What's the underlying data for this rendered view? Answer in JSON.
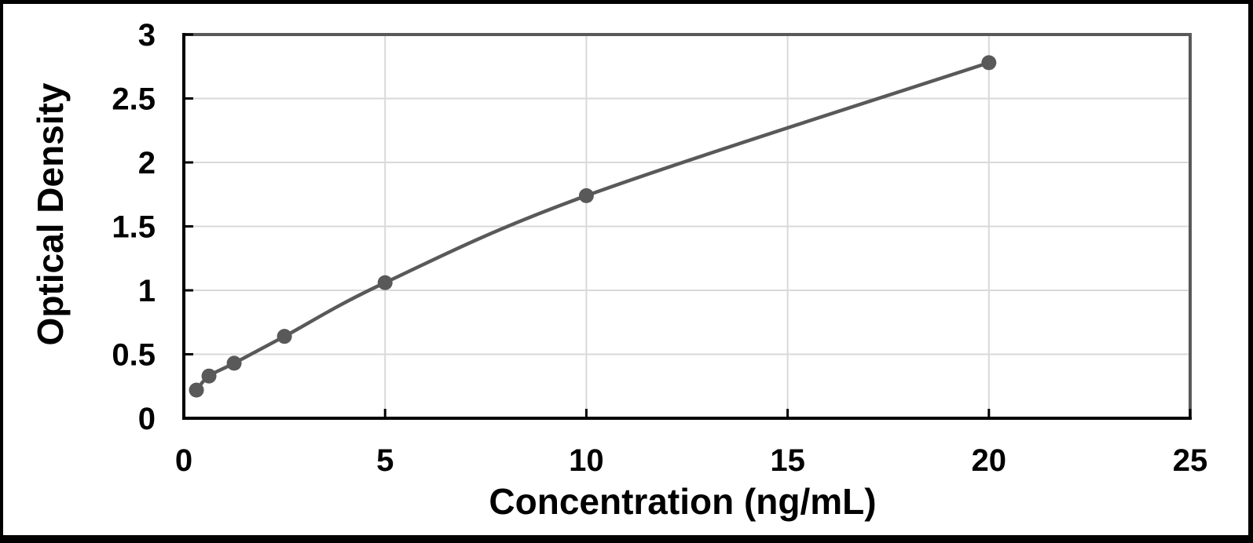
{
  "chart_data": {
    "type": "line",
    "subtype": "smooth-line-with-markers",
    "title": "",
    "xlabel": "Concentration (ng/mL)",
    "ylabel": "Optical Density",
    "x": [
      0.313,
      0.625,
      1.25,
      2.5,
      5,
      10,
      20
    ],
    "y": [
      0.22,
      0.33,
      0.43,
      0.64,
      1.06,
      1.74,
      2.78
    ],
    "xlim": [
      0,
      25
    ],
    "ylim": [
      0,
      3
    ],
    "x_ticks": [
      0,
      5,
      10,
      15,
      20,
      25
    ],
    "y_ticks": [
      0,
      0.5,
      1,
      1.5,
      2,
      2.5,
      3
    ],
    "grid": true,
    "legend": false,
    "marker": "circle",
    "colors": {
      "line": "#595959",
      "marker": "#595959",
      "gridline": "#d9d9d9",
      "axis": "#000000",
      "plot_border": "#595959",
      "background": "#ffffff",
      "frame": "#000000",
      "text": "#000000"
    }
  }
}
